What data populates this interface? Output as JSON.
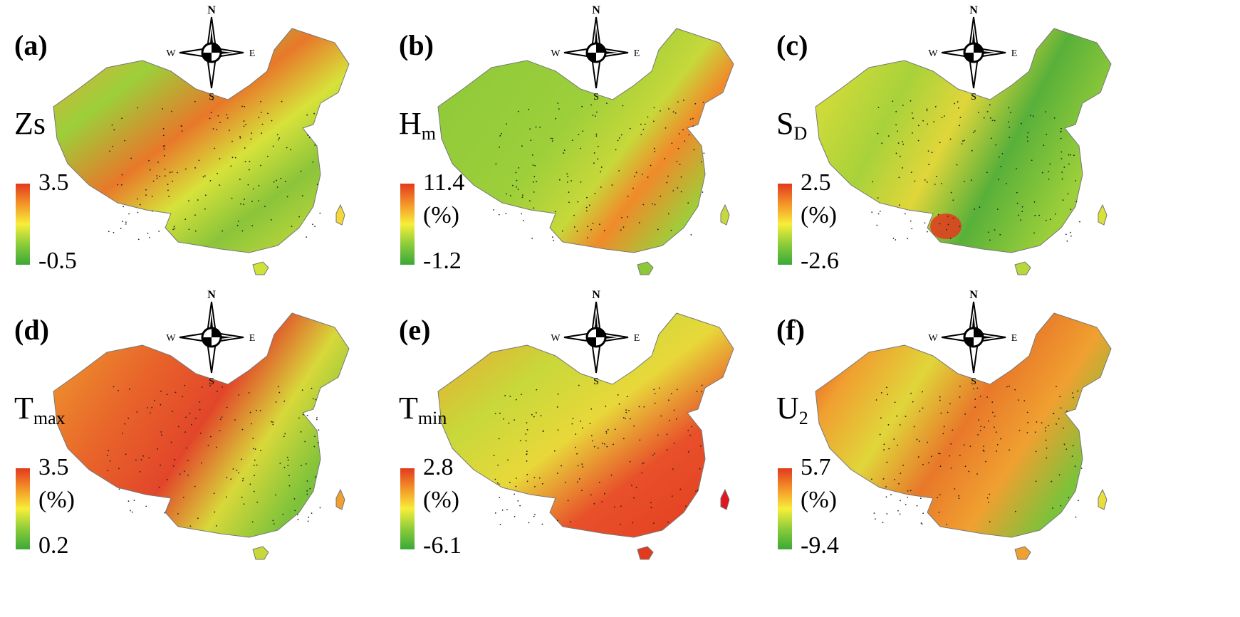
{
  "panels": [
    {
      "label": "(a)",
      "var_main": "Zs",
      "var_sub": "",
      "max": "3.5",
      "unit": "",
      "min": "-0.5",
      "palette": [
        "#e23a1e",
        "#f49428",
        "#f7ee3a",
        "#8bcc3a",
        "#3aa838"
      ]
    },
    {
      "label": "(b)",
      "var_main": "H",
      "var_sub": "m",
      "max": "11.4",
      "unit": "(%)",
      "min": "-1.2",
      "palette": [
        "#e23a1e",
        "#f49428",
        "#f7ee3a",
        "#8bcc3a",
        "#3aa838"
      ]
    },
    {
      "label": "(c)",
      "var_main": "S",
      "var_sub": "D",
      "max": "2.5",
      "unit": "(%)",
      "min": "-2.6",
      "palette": [
        "#e23a1e",
        "#f49428",
        "#f7ee3a",
        "#8bcc3a",
        "#3aa838"
      ]
    },
    {
      "label": "(d)",
      "var_main": "T",
      "var_sub": "max",
      "max": "3.5",
      "unit": "(%)",
      "min": "0.2",
      "palette": [
        "#e23a1e",
        "#f49428",
        "#f7ee3a",
        "#8bcc3a",
        "#3aa838"
      ]
    },
    {
      "label": "(e)",
      "var_main": "T",
      "var_sub": "min",
      "max": "2.8",
      "unit": "(%)",
      "min": "-6.1",
      "palette": [
        "#e23a1e",
        "#f49428",
        "#f7ee3a",
        "#8bcc3a",
        "#3aa838"
      ]
    },
    {
      "label": "(f)",
      "var_main": "U",
      "var_sub": "2",
      "max": "5.7",
      "unit": "(%)",
      "min": "-9.4",
      "palette": [
        "#e23a1e",
        "#f49428",
        "#f7ee3a",
        "#8bcc3a",
        "#3aa838"
      ]
    }
  ],
  "compass": {
    "n": "N",
    "s": "S",
    "e": "E",
    "w": "W"
  }
}
